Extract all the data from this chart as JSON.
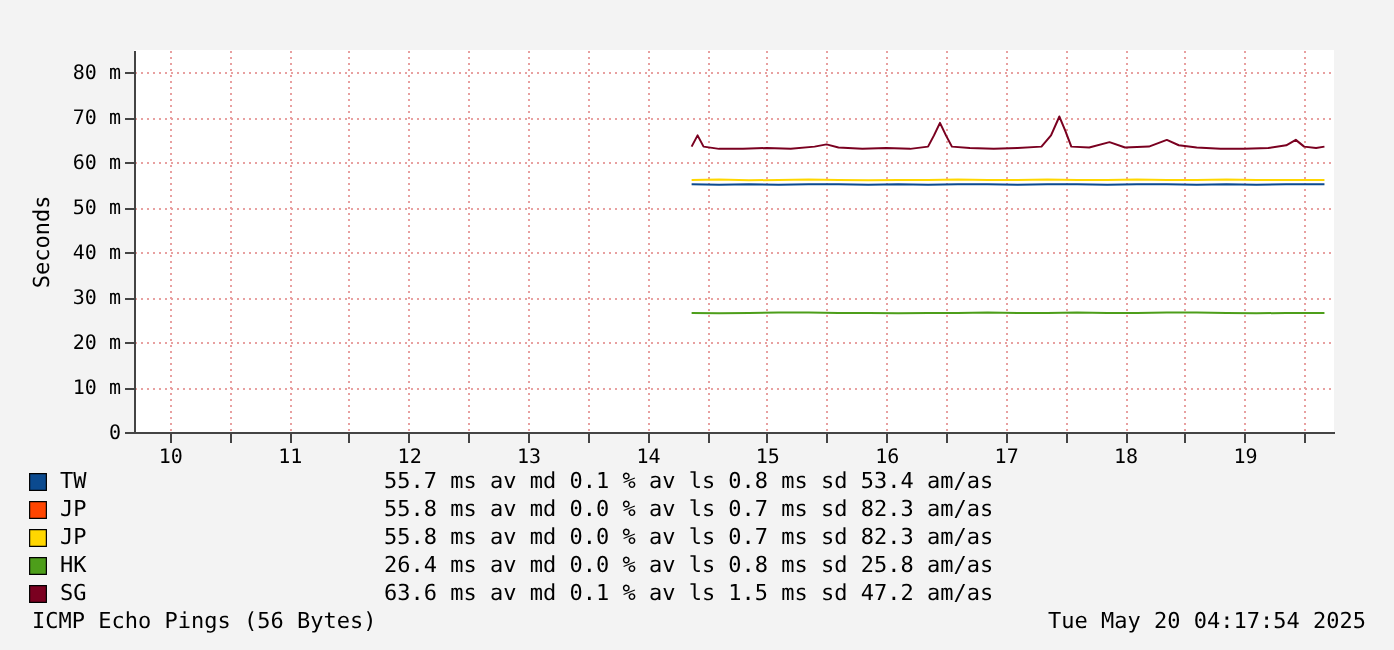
{
  "chart_data": {
    "type": "line",
    "ylabel": "Seconds",
    "x": [
      14.37,
      14.6,
      14.85,
      15.1,
      15.35,
      15.6,
      15.85,
      16.1,
      16.35,
      16.6,
      16.85,
      17.1,
      17.35,
      17.6,
      17.85,
      18.1,
      18.35,
      18.6,
      18.85,
      19.1,
      19.35,
      19.67
    ],
    "series": [
      {
        "name": "TW",
        "color": "#0b4a8f",
        "values": [
          55.1,
          55.0,
          55.1,
          55.0,
          55.1,
          55.1,
          55.0,
          55.1,
          55.0,
          55.1,
          55.1,
          55.0,
          55.1,
          55.1,
          55.0,
          55.1,
          55.1,
          55.0,
          55.1,
          55.0,
          55.1,
          55.1
        ]
      },
      {
        "name": "JP",
        "color": "#ff4500",
        "values": [
          null,
          null,
          null,
          null,
          null,
          null,
          null,
          null,
          null,
          null,
          null,
          null,
          null,
          null,
          null,
          null,
          null,
          null,
          null,
          null,
          null,
          null
        ]
      },
      {
        "name": "JP",
        "color": "#ffd700",
        "values": [
          56.1,
          56.2,
          56.0,
          56.1,
          56.2,
          56.1,
          56.0,
          56.1,
          56.1,
          56.2,
          56.1,
          56.1,
          56.2,
          56.1,
          56.1,
          56.2,
          56.1,
          56.1,
          56.2,
          56.1,
          56.1,
          56.1
        ]
      },
      {
        "name": "HK",
        "color": "#4d9e1a",
        "values": [
          26.5,
          26.4,
          26.5,
          26.6,
          26.6,
          26.5,
          26.5,
          26.4,
          26.5,
          26.5,
          26.6,
          26.5,
          26.5,
          26.6,
          26.5,
          26.5,
          26.6,
          26.6,
          26.5,
          26.4,
          26.5,
          26.5
        ]
      },
      {
        "name": "SG",
        "color": "#7a0020",
        "x": [
          14.37,
          14.42,
          14.47,
          14.6,
          14.8,
          15.0,
          15.2,
          15.4,
          15.5,
          15.6,
          15.8,
          16.0,
          16.2,
          16.35,
          16.4,
          16.45,
          16.5,
          16.55,
          16.7,
          16.9,
          17.1,
          17.3,
          17.38,
          17.45,
          17.5,
          17.55,
          17.7,
          17.87,
          18.0,
          18.2,
          18.35,
          18.45,
          18.6,
          18.8,
          19.0,
          19.2,
          19.35,
          19.43,
          19.5,
          19.6,
          19.67
        ],
        "values": [
          63.5,
          66,
          63.5,
          63,
          63,
          63.2,
          63,
          63.5,
          64,
          63.3,
          63,
          63.2,
          63,
          63.5,
          66,
          68.8,
          66,
          63.5,
          63.2,
          63,
          63.2,
          63.5,
          66,
          70.2,
          67,
          63.5,
          63.3,
          64.5,
          63.3,
          63.5,
          65,
          63.8,
          63.3,
          63,
          63,
          63.2,
          63.8,
          65,
          63.5,
          63.2,
          63.5
        ]
      }
    ],
    "xlim": [
      9.7,
      19.75
    ],
    "xticks": [
      10,
      {
        "value": 10.5,
        "label": null
      },
      11,
      {
        "value": 11.5,
        "label": null
      },
      12,
      {
        "value": 12.5,
        "label": null
      },
      13,
      {
        "value": 13.5,
        "label": null
      },
      14,
      {
        "value": 14.5,
        "label": null
      },
      15,
      {
        "value": 15.5,
        "label": null
      },
      16,
      {
        "value": 16.5,
        "label": null
      },
      17,
      {
        "value": 17.5,
        "label": null
      },
      18,
      {
        "value": 18.5,
        "label": null
      },
      19,
      {
        "value": 19.5,
        "label": null
      }
    ],
    "ylim": [
      0,
      85
    ],
    "yticks": [
      0,
      {
        "value": 10,
        "label": "10 m"
      },
      {
        "value": 20,
        "label": "20 m"
      },
      {
        "value": 30,
        "label": "30 m"
      },
      {
        "value": 40,
        "label": "40 m"
      },
      {
        "value": 50,
        "label": "50 m"
      },
      {
        "value": 60,
        "label": "60 m"
      },
      {
        "value": 70,
        "label": "70 m"
      },
      {
        "value": 80,
        "label": "80 m"
      }
    ],
    "grid": true,
    "legend": "bottom",
    "line_style": "solid",
    "marker": "none",
    "annotations": [
      "55.7 ms av md 0.1 % av ls 0.8 ms sd 53.4 am/as",
      "55.8 ms av md 0.0 % av ls 0.7 ms sd 82.3 am/as",
      "55.8 ms av md 0.0 % av ls 0.7 ms sd 82.3 am/as",
      "26.4 ms av md 0.0 % av ls 0.8 ms sd 25.8 am/as",
      "63.6 ms av md 0.1 % av ls 1.5 ms sd 47.2 am/as",
      "ICMP Echo Pings (56 Bytes)",
      "Tue May 20 04:17:54 2025"
    ]
  }
}
